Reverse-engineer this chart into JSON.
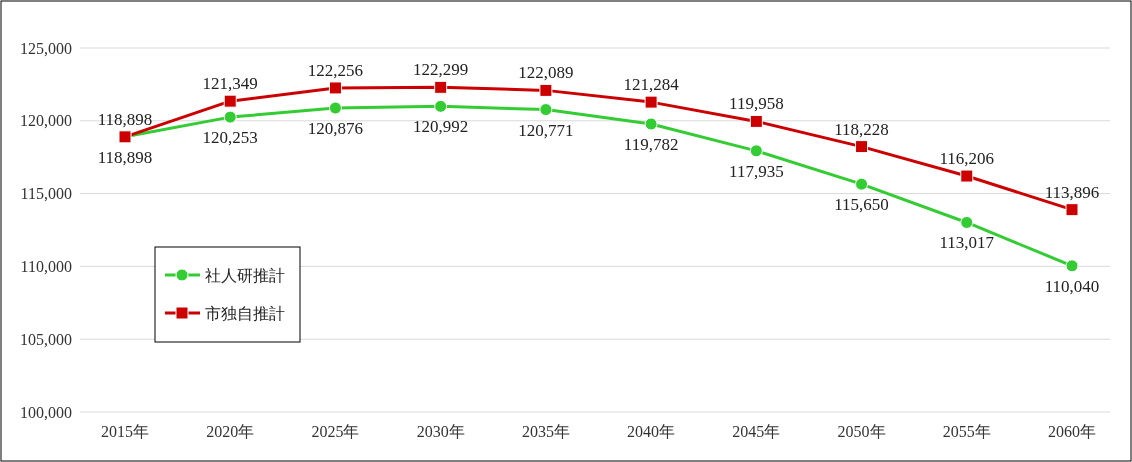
{
  "chart_data": {
    "type": "line",
    "categories": [
      "2015年",
      "2020年",
      "2025年",
      "2030年",
      "2035年",
      "2040年",
      "2045年",
      "2050年",
      "2055年",
      "2060年"
    ],
    "series": [
      {
        "name": "社人研推計",
        "color": "#33cc33",
        "marker": "circle",
        "values": [
          118898,
          120253,
          120876,
          120992,
          120771,
          119782,
          117935,
          115650,
          113017,
          110040
        ],
        "value_labels": [
          "118,898",
          "120,253",
          "120,876",
          "120,992",
          "120,771",
          "119,782",
          "117,935",
          "115,650",
          "113,017",
          "110,040"
        ]
      },
      {
        "name": "市独自推計",
        "color": "#cc0000",
        "marker": "square",
        "values": [
          118898,
          121349,
          122256,
          122299,
          122089,
          121284,
          119958,
          118228,
          116206,
          113896
        ],
        "value_labels": [
          "118,898",
          "121,349",
          "122,256",
          "122,299",
          "122,089",
          "121,284",
          "119,958",
          "118,228",
          "116,206",
          "113,896"
        ]
      }
    ],
    "ylim": [
      100000,
      125000
    ],
    "yticks": [
      {
        "value": 100000,
        "label": "100,000"
      },
      {
        "value": 105000,
        "label": "105,000"
      },
      {
        "value": 110000,
        "label": "110,000"
      },
      {
        "value": 115000,
        "label": "115,000"
      },
      {
        "value": 120000,
        "label": "120,000"
      },
      {
        "value": 125000,
        "label": "125,000"
      }
    ],
    "grid": "y",
    "legend": "bottom left",
    "line_style": "solid"
  }
}
